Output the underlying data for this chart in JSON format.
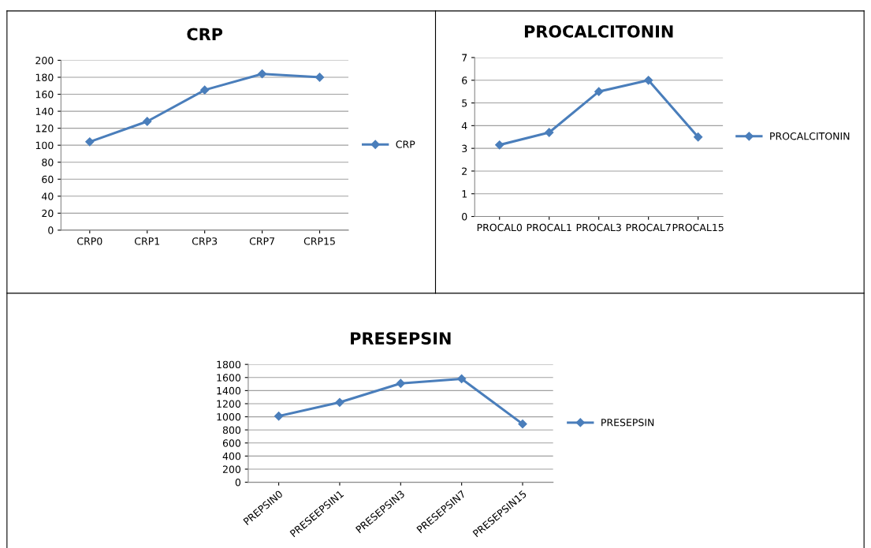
{
  "chart_data": [
    {
      "type": "line",
      "title": "CRP",
      "categories": [
        "CRP0",
        "CRP1",
        "CRP3",
        "CRP7",
        "CRP15"
      ],
      "series": [
        {
          "name": "CRP",
          "color": "#4a7ebb",
          "values": [
            104,
            128,
            165,
            184,
            180
          ]
        }
      ],
      "ylim": [
        0,
        200
      ],
      "yticks": [
        0,
        20,
        40,
        60,
        80,
        100,
        120,
        140,
        160,
        180,
        200
      ],
      "grid": "y",
      "legend": "right",
      "marker": "diamond",
      "line_style": "solid"
    },
    {
      "type": "line",
      "title": "PROCALCITONIN",
      "categories": [
        "PROCAL0",
        "PROCAL1",
        "PROCAL3",
        "PROCAL7",
        "PROCAL15"
      ],
      "series": [
        {
          "name": "PROCALCITONIN",
          "color": "#4a7ebb",
          "values": [
            3.15,
            3.7,
            5.5,
            6.0,
            3.5
          ]
        }
      ],
      "ylim": [
        0,
        7
      ],
      "yticks": [
        0,
        1,
        2,
        3,
        4,
        5,
        6,
        7
      ],
      "grid": "y",
      "legend": "right",
      "marker": "diamond",
      "line_style": "solid"
    },
    {
      "type": "line",
      "title": "PRESEPSIN",
      "categories": [
        "PREPSIN0",
        "PRESEEPSIN1",
        "PRESEPSIN3",
        "PRESEPSIN7",
        "PRESEPSIN15"
      ],
      "series": [
        {
          "name": "PRESEPSIN",
          "color": "#4a7ebb",
          "values": [
            1010,
            1220,
            1510,
            1580,
            890
          ]
        }
      ],
      "ylim": [
        0,
        1800
      ],
      "yticks": [
        0,
        200,
        400,
        600,
        800,
        1000,
        1200,
        1400,
        1600,
        1800
      ],
      "grid": "y",
      "legend": "right",
      "marker": "diamond",
      "line_style": "solid"
    }
  ]
}
